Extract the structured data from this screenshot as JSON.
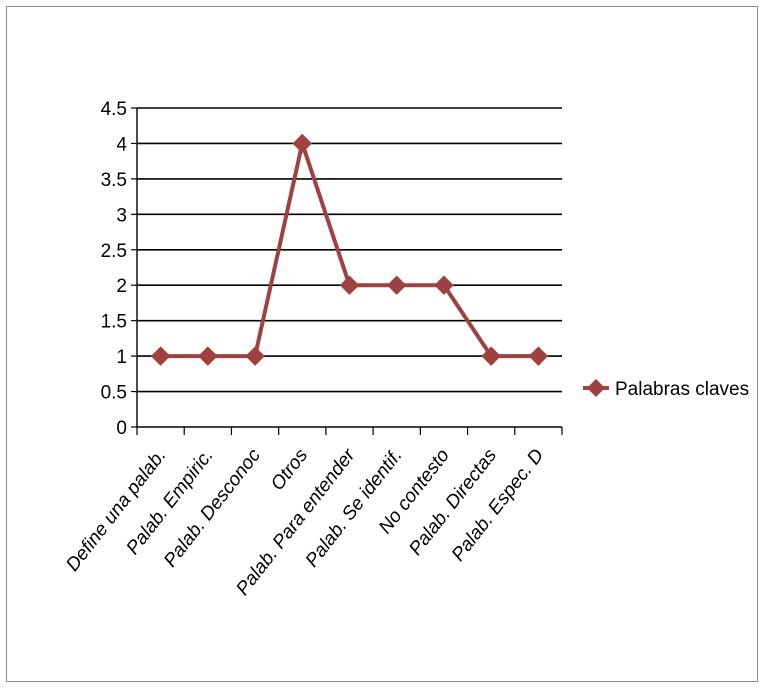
{
  "chart_data": {
    "type": "line",
    "title": "",
    "xlabel": "",
    "ylabel": "",
    "categories": [
      "Define una palab.",
      "Palab. Empiric.",
      "Palab. Desconoc",
      "Otros",
      "Palab. Para entender",
      "Palab. Se identif.",
      "No contesto",
      "Palab. Directas",
      "Palab. Espec. D"
    ],
    "series": [
      {
        "name": "Palabras claves",
        "values": [
          1,
          1,
          1,
          4,
          2,
          2,
          2,
          1,
          1
        ],
        "color": "#a0403f"
      }
    ],
    "ylim": [
      0,
      4.5
    ],
    "ytick_step": 0.5,
    "yticks": [
      "0",
      "0.5",
      "1",
      "1.5",
      "2",
      "2.5",
      "3",
      "3.5",
      "4",
      "4.5"
    ],
    "grid": true,
    "legend_position": "right",
    "marker": "diamond"
  }
}
